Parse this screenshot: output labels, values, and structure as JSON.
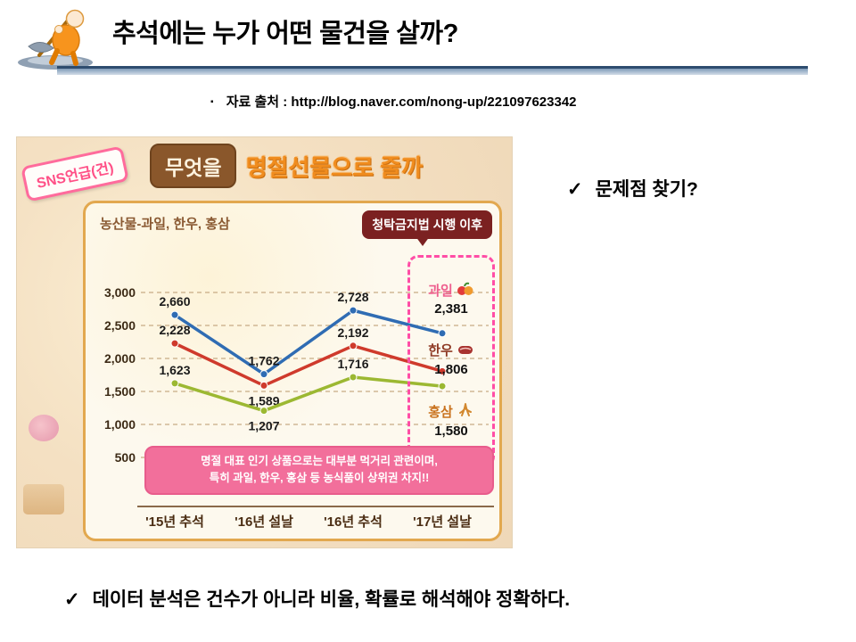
{
  "slide": {
    "title": "추석에는 누가 어떤 물건을 살까?",
    "bullet_marker": "▪",
    "source_note": "자료 출처 : http://blog.naver.com/nong-up/221097623342",
    "check_mark": "✓",
    "question": "문제점 찾기?",
    "conclusion": "데이터 분석은 건수가 아니라 비율, 확률로 해석해야 정확하다."
  },
  "infographic": {
    "badge": "SNS언급(건)",
    "title_box": "무엇을",
    "title_rest": "명절선물으로 줄까",
    "chart_header": "농산물-과일, 한우, 홍삼",
    "callout": "청탁금지법 시행 이후",
    "note_line1": "명절 대표 인기 상품으로는 대부분 먹거리 관련이며,",
    "note_line2": "특히 과일, 한우, 홍삼 등 농식품이 상위권 차지!!"
  },
  "chart_data": {
    "type": "line",
    "title": "무엇을 명절선물으로 줄까",
    "unit_label": "SNS언급(건)",
    "categories": [
      "'15년 추석",
      "'16년 설날",
      "'16년 추석",
      "'17년 설날"
    ],
    "series": [
      {
        "name": "과일",
        "icon": "fruit-icon",
        "color": "#2f6cb3",
        "label_color": "#ee5f8e",
        "values": [
          2660,
          1762,
          2728,
          2381
        ]
      },
      {
        "name": "한우",
        "icon": "beef-icon",
        "color": "#cf3a2c",
        "label_color": "#8e3a24",
        "values": [
          2228,
          1589,
          2192,
          1806
        ]
      },
      {
        "name": "홍삼",
        "icon": "ginseng-icon",
        "color": "#9cb832",
        "label_color": "#c9731f",
        "values": [
          1623,
          1207,
          1716,
          1580
        ]
      }
    ],
    "y_ticks": [
      3000,
      2500,
      2000,
      1500,
      1000,
      500
    ],
    "ylim": [
      500,
      3000
    ],
    "grid": "dashed-horizontal",
    "legend_position": "right-dashed-box",
    "annotation": "청탁금지법 시행 이후",
    "label_below_indices": {
      "한우": [
        1
      ],
      "홍삼": [
        1
      ]
    }
  }
}
